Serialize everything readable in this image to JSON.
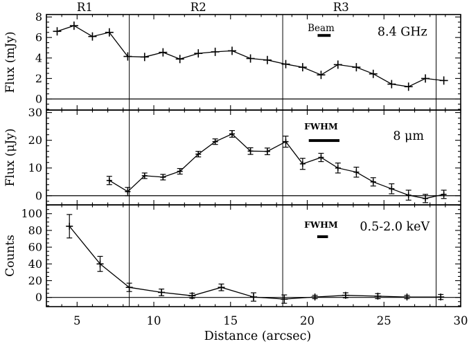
{
  "figure": {
    "xlabel": "Distance (arcsec)",
    "x_range": [
      3,
      30
    ],
    "x_major_ticks": [
      5,
      10,
      15,
      20,
      25,
      30
    ],
    "x_minor_step": 1,
    "region_boundaries_arcsec": [
      8.4,
      18.4,
      28.4
    ],
    "region_labels": [
      {
        "label": "R1",
        "x": 5.5
      },
      {
        "label": "R2",
        "x": 12.9
      },
      {
        "label": "R3",
        "x": 22.2
      }
    ],
    "colors": {
      "ink": "#000000",
      "background": "#ffffff"
    }
  },
  "chart_data": [
    {
      "type": "line",
      "name": "radio",
      "band_label": "8.4 GHz",
      "band_label_pos": {
        "x": 26.2,
        "y": 6.6
      },
      "ylabel": "Flux (mJy)",
      "y_major_ticks": [
        0,
        2,
        4,
        6,
        8
      ],
      "y_minor_step": 0.5,
      "y_range": [
        -1.08,
        8.24
      ],
      "marker": "plus",
      "beam_annotation": {
        "label": "Beam",
        "label_x": 20.9,
        "label_y": 6.9,
        "bar_center_x": 21.1,
        "bar_y": 6.2,
        "bar_width_arcsec": 0.85
      },
      "x": [
        3.7,
        4.8,
        6.0,
        7.1,
        8.3,
        9.4,
        10.6,
        11.7,
        12.9,
        14.0,
        15.1,
        16.3,
        17.4,
        18.6,
        19.7,
        20.9,
        22.0,
        23.2,
        24.3,
        25.5,
        26.6,
        27.7,
        28.9
      ],
      "y": [
        6.6,
        7.15,
        6.1,
        6.5,
        4.15,
        4.1,
        4.55,
        3.9,
        4.45,
        4.6,
        4.7,
        3.95,
        3.8,
        3.4,
        3.1,
        2.35,
        3.35,
        3.1,
        2.45,
        1.45,
        1.2,
        2.0,
        1.8
      ]
    },
    {
      "type": "line",
      "name": "infrared",
      "band_label": "8 μm",
      "band_label_pos": {
        "x": 26.6,
        "y": 21.7
      },
      "ylabel": "Flux (μJy)",
      "y_major_ticks": [
        0,
        10,
        20,
        30
      ],
      "y_minor_step": 2,
      "y_range": [
        -3.3,
        30.9
      ],
      "marker": "plus",
      "beam_annotation": {
        "label": "FWHM",
        "label_x": 20.9,
        "label_y": 24.9,
        "bar_center_x": 21.1,
        "bar_y": 19.9,
        "bar_width_arcsec": 2.0
      },
      "x": [
        7.1,
        8.3,
        9.4,
        10.6,
        11.7,
        12.9,
        14.0,
        15.1,
        16.3,
        17.4,
        18.6,
        19.7,
        20.9,
        22.0,
        23.2,
        24.3,
        25.5,
        26.6,
        27.7,
        28.9
      ],
      "y": [
        5.5,
        1.5,
        7.2,
        6.7,
        8.8,
        15.0,
        19.5,
        22.3,
        16.1,
        16.0,
        19.5,
        11.5,
        13.8,
        10.0,
        8.5,
        5.0,
        2.5,
        0.2,
        -1.0,
        0.5
      ],
      "yerr": [
        1.5,
        1.5,
        1.0,
        1.0,
        1.0,
        1.0,
        1.0,
        1.2,
        1.2,
        1.2,
        2.0,
        2.0,
        1.5,
        1.8,
        1.8,
        1.5,
        1.8,
        1.8,
        1.5,
        1.5
      ]
    },
    {
      "type": "line",
      "name": "xray",
      "band_label": "0.5-2.0 keV",
      "band_label_pos": {
        "x": 25.7,
        "y": 85
      },
      "ylabel": "Counts",
      "y_major_ticks": [
        0,
        20,
        40,
        60,
        80,
        100
      ],
      "y_minor_step": 5,
      "y_range": [
        -11,
        110.5
      ],
      "marker": "plus",
      "beam_annotation": {
        "label": "FWHM",
        "label_x": 20.9,
        "label_y": 86.5,
        "bar_center_x": 21.0,
        "bar_y": 72.5,
        "bar_width_arcsec": 0.7
      },
      "x": [
        4.5,
        6.5,
        8.4,
        10.5,
        12.5,
        14.4,
        16.5,
        18.5,
        20.5,
        22.5,
        24.6,
        26.5,
        28.7
      ],
      "y": [
        85,
        40,
        12,
        6,
        2,
        12,
        0.5,
        -2,
        0.5,
        2.5,
        1.5,
        0.5,
        0.5
      ],
      "yerr": [
        14,
        9,
        5,
        4,
        3,
        4,
        5,
        5,
        2,
        3,
        3,
        2,
        3
      ]
    }
  ]
}
